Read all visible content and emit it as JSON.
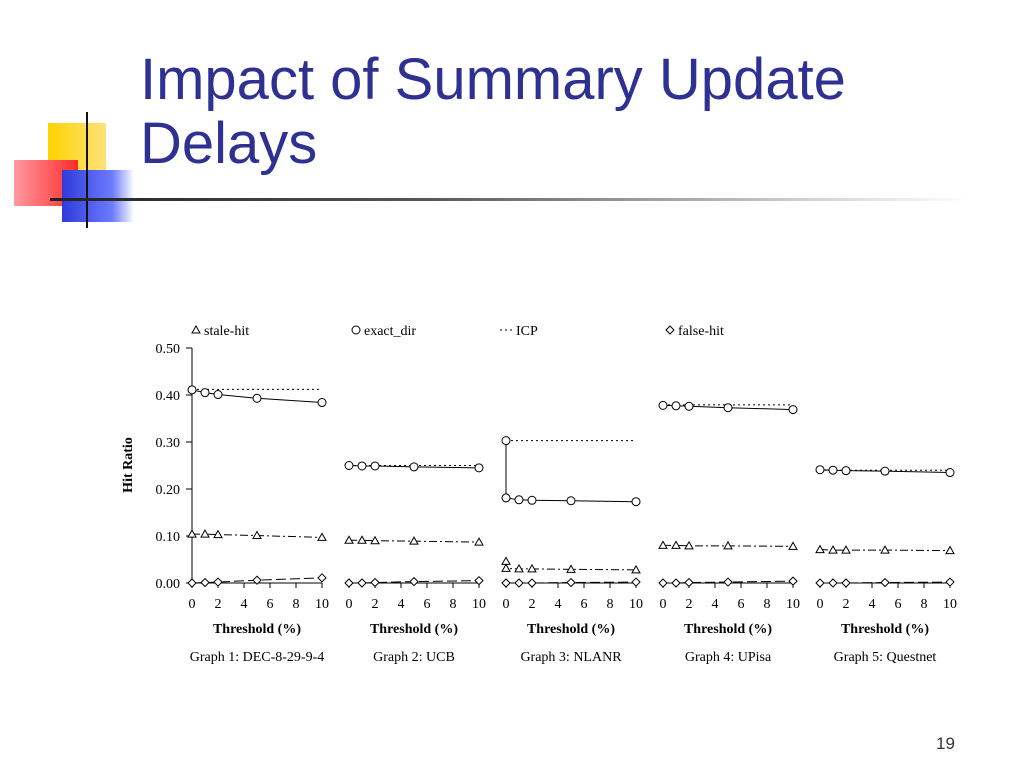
{
  "slide": {
    "title": "Impact of Summary Update Delays",
    "page_number": "19"
  },
  "chart_data": {
    "type": "line",
    "ylabel": "Hit Ratio",
    "ylim": [
      0,
      0.5
    ],
    "yticks": [
      "0.00",
      "0.10",
      "0.20",
      "0.30",
      "0.40",
      "0.50"
    ],
    "x": [
      0,
      1,
      2,
      5,
      10
    ],
    "xticks": [
      "0",
      "2",
      "4",
      "6",
      "8",
      "10"
    ],
    "xlabel": "Threshold (%)",
    "legend": [
      {
        "key": "stale_hit",
        "marker": "triangle",
        "label": "stale-hit"
      },
      {
        "key": "exact_dir",
        "marker": "circle",
        "label": "exact_dir"
      },
      {
        "key": "icp",
        "marker": "none",
        "label": "ICP"
      },
      {
        "key": "false_hit",
        "marker": "diamond",
        "label": "false-hit"
      }
    ],
    "panels": [
      {
        "caption": "Graph 1: DEC-8-29-9-4",
        "exact_dir": [
          0.411,
          0.405,
          0.401,
          0.393,
          0.384
        ],
        "icp": 0.412,
        "stale_hit": [
          0.104,
          0.104,
          0.103,
          0.101,
          0.097
        ],
        "false_hit": [
          0.0,
          0.001,
          0.002,
          0.006,
          0.011
        ]
      },
      {
        "caption": "Graph 2: UCB",
        "exact_dir": [
          0.25,
          0.249,
          0.249,
          0.247,
          0.245
        ],
        "icp": 0.25,
        "stale_hit": [
          0.091,
          0.091,
          0.09,
          0.089,
          0.087
        ],
        "false_hit": [
          0.0,
          0.0,
          0.001,
          0.003,
          0.005
        ]
      },
      {
        "caption": "Graph 3: NLANR",
        "exact_dir": [
          0.181,
          0.177,
          0.176,
          0.175,
          0.173
        ],
        "exact_dir_start": 0.303,
        "icp": 0.303,
        "stale_hit": [
          0.031,
          0.03,
          0.03,
          0.029,
          0.028
        ],
        "stale_hit_start": 0.046,
        "false_hit": [
          0.0,
          0.0,
          0.0,
          0.001,
          0.002
        ]
      },
      {
        "caption": "Graph 4: UPisa",
        "exact_dir": [
          0.378,
          0.377,
          0.376,
          0.373,
          0.369
        ],
        "icp": 0.379,
        "stale_hit": [
          0.08,
          0.08,
          0.079,
          0.079,
          0.078
        ],
        "false_hit": [
          0.0,
          0.0,
          0.001,
          0.002,
          0.004
        ]
      },
      {
        "caption": "Graph 5: Questnet",
        "exact_dir": [
          0.241,
          0.24,
          0.239,
          0.238,
          0.235
        ],
        "icp": 0.24,
        "stale_hit": [
          0.071,
          0.07,
          0.07,
          0.07,
          0.069
        ],
        "false_hit": [
          0.0,
          0.0,
          0.0,
          0.001,
          0.002
        ]
      }
    ]
  }
}
